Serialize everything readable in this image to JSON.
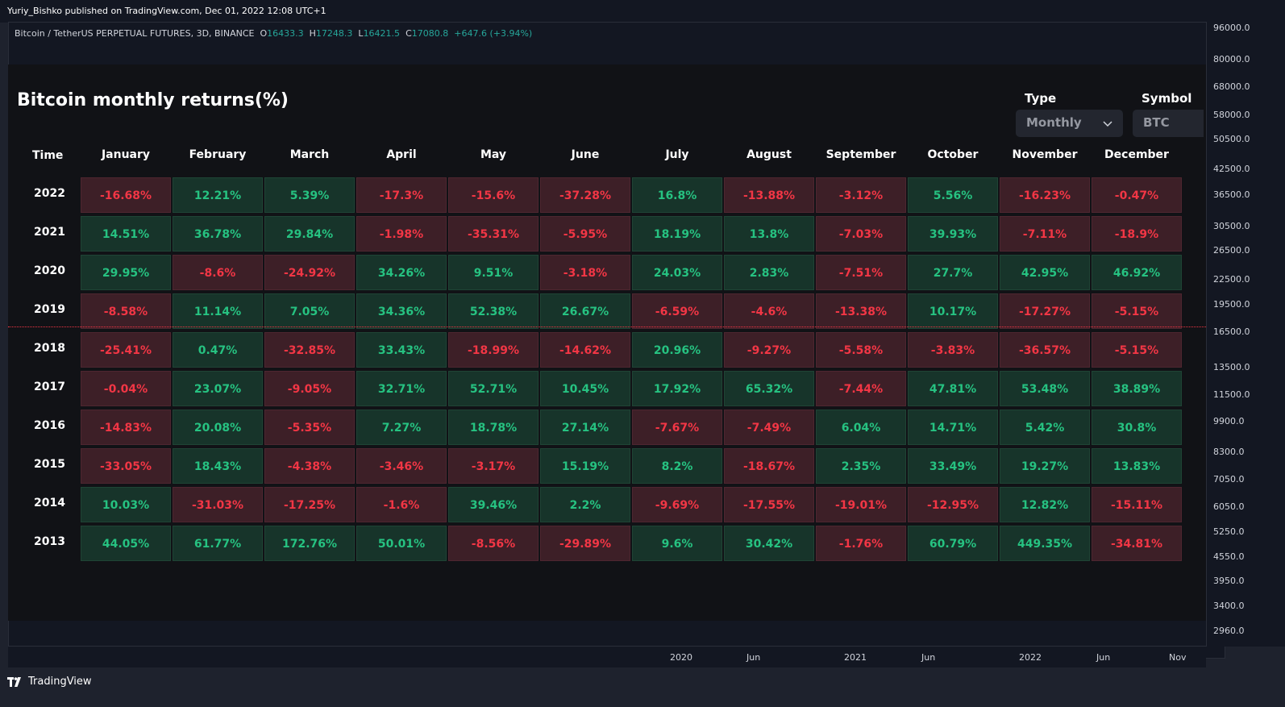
{
  "header": {
    "publisher_text": "Yuriy_Bishko published on TradingView.com, Dec 01, 2022 12:08 UTC+1"
  },
  "symbol_line": {
    "name": "Bitcoin / TetherUS PERPETUAL FUTURES, 3D, BINANCE",
    "o_label": "O",
    "o_value": "16433.3",
    "h_label": "H",
    "h_value": "17248.3",
    "l_label": "L",
    "l_value": "16421.5",
    "c_label": "C",
    "c_value": "17080.8",
    "change": "+647.6 (+3.94%)"
  },
  "table": {
    "title": "Bitcoin monthly returns(%)",
    "type_label": "Type",
    "type_value": "Monthly",
    "symbol_label": "Symbol",
    "symbol_value": "BTC",
    "time_header": "Time",
    "months": [
      "January",
      "February",
      "March",
      "April",
      "May",
      "June",
      "July",
      "August",
      "September",
      "October",
      "November",
      "December"
    ],
    "rows": [
      {
        "year": "2022",
        "values": [
          "-16.68%",
          "12.21%",
          "5.39%",
          "-17.3%",
          "-15.6%",
          "-37.28%",
          "16.8%",
          "-13.88%",
          "-3.12%",
          "5.56%",
          "-16.23%",
          "-0.47%"
        ]
      },
      {
        "year": "2021",
        "values": [
          "14.51%",
          "36.78%",
          "29.84%",
          "-1.98%",
          "-35.31%",
          "-5.95%",
          "18.19%",
          "13.8%",
          "-7.03%",
          "39.93%",
          "-7.11%",
          "-18.9%"
        ]
      },
      {
        "year": "2020",
        "values": [
          "29.95%",
          "-8.6%",
          "-24.92%",
          "34.26%",
          "9.51%",
          "-3.18%",
          "24.03%",
          "2.83%",
          "-7.51%",
          "27.7%",
          "42.95%",
          "46.92%"
        ]
      },
      {
        "year": "2019",
        "values": [
          "-8.58%",
          "11.14%",
          "7.05%",
          "34.36%",
          "52.38%",
          "26.67%",
          "-6.59%",
          "-4.6%",
          "-13.38%",
          "10.17%",
          "-17.27%",
          "-5.15%"
        ]
      },
      {
        "year": "2018",
        "values": [
          "-25.41%",
          "0.47%",
          "-32.85%",
          "33.43%",
          "-18.99%",
          "-14.62%",
          "20.96%",
          "-9.27%",
          "-5.58%",
          "-3.83%",
          "-36.57%",
          "-5.15%"
        ]
      },
      {
        "year": "2017",
        "values": [
          "-0.04%",
          "23.07%",
          "-9.05%",
          "32.71%",
          "52.71%",
          "10.45%",
          "17.92%",
          "65.32%",
          "-7.44%",
          "47.81%",
          "53.48%",
          "38.89%"
        ]
      },
      {
        "year": "2016",
        "values": [
          "-14.83%",
          "20.08%",
          "-5.35%",
          "7.27%",
          "18.78%",
          "27.14%",
          "-7.67%",
          "-7.49%",
          "6.04%",
          "14.71%",
          "5.42%",
          "30.8%"
        ]
      },
      {
        "year": "2015",
        "values": [
          "-33.05%",
          "18.43%",
          "-4.38%",
          "-3.46%",
          "-3.17%",
          "15.19%",
          "8.2%",
          "-18.67%",
          "2.35%",
          "33.49%",
          "19.27%",
          "13.83%"
        ]
      },
      {
        "year": "2014",
        "values": [
          "10.03%",
          "-31.03%",
          "-17.25%",
          "-1.6%",
          "39.46%",
          "2.2%",
          "-9.69%",
          "-17.55%",
          "-19.01%",
          "-12.95%",
          "12.82%",
          "-15.11%"
        ]
      },
      {
        "year": "2013",
        "values": [
          "44.05%",
          "61.77%",
          "172.76%",
          "50.01%",
          "-8.56%",
          "-29.89%",
          "9.6%",
          "30.42%",
          "-1.76%",
          "60.79%",
          "449.35%",
          "-34.81%"
        ]
      }
    ]
  },
  "price_axis": [
    "96000.0",
    "80000.0",
    "68000.0",
    "58000.0",
    "50500.0",
    "42500.0",
    "36500.0",
    "30500.0",
    "26500.0",
    "22500.0",
    "19500.0",
    "16500.0",
    "13500.0",
    "11500.0",
    "9900.0",
    "8300.0",
    "7050.0",
    "6050.0",
    "5250.0",
    "4550.0",
    "3950.0",
    "3400.0",
    "2960.0"
  ],
  "time_axis": [
    "2020",
    "Jun",
    "2021",
    "Jun",
    "2022",
    "Jun",
    "Nov"
  ],
  "footer": {
    "brand": "TradingView"
  },
  "colors": {
    "positive_bg": "#17342a",
    "positive_text": "#26c281",
    "negative_bg": "#3d1f27",
    "negative_text": "#f23645",
    "background": "#131722"
  }
}
